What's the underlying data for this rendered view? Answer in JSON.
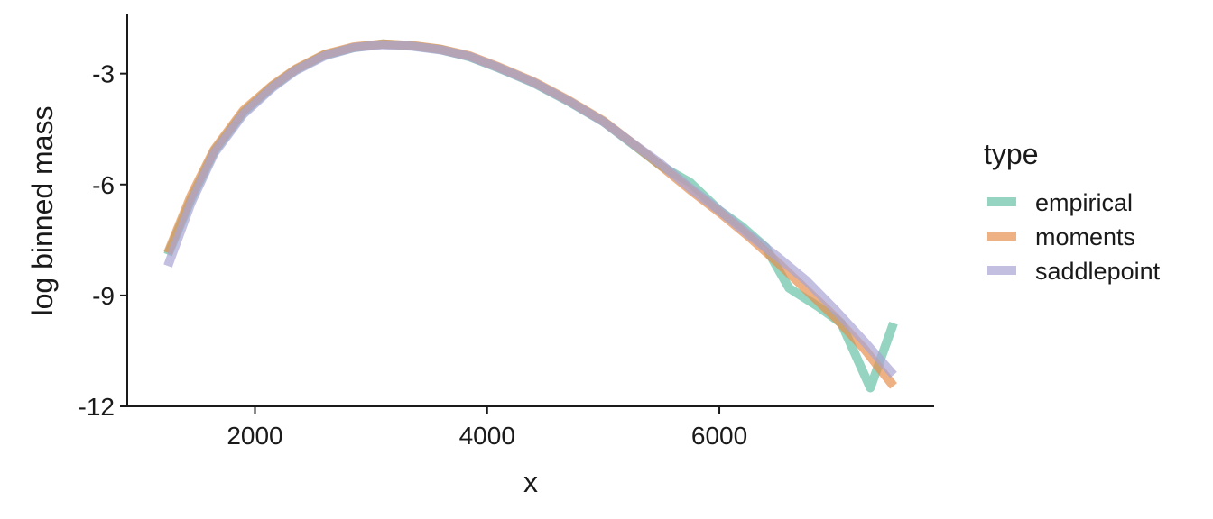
{
  "chart_data": {
    "type": "line",
    "title": "",
    "xlabel": "x",
    "ylabel": "log binned mass",
    "xlim": [
      900,
      7850
    ],
    "ylim": [
      -12,
      -1.4
    ],
    "x_ticks": [
      2000,
      4000,
      6000
    ],
    "x_tick_labels": [
      "2000",
      "4000",
      "6000"
    ],
    "y_ticks": [
      -3,
      -6,
      -9,
      -12
    ],
    "y_tick_labels": [
      "-3",
      "-6",
      "-9",
      "-12"
    ],
    "grid": false,
    "legend": {
      "title": "type",
      "placement": "right"
    },
    "series": [
      {
        "name": "empirical",
        "color": "#66c2a5",
        "points": [
          [
            1250,
            -7.9
          ],
          [
            1450,
            -6.4
          ],
          [
            1650,
            -5.1
          ],
          [
            1900,
            -4.05
          ],
          [
            2150,
            -3.35
          ],
          [
            2350,
            -2.9
          ],
          [
            2600,
            -2.5
          ],
          [
            2850,
            -2.3
          ],
          [
            3100,
            -2.2
          ],
          [
            3350,
            -2.25
          ],
          [
            3600,
            -2.35
          ],
          [
            3850,
            -2.55
          ],
          [
            4100,
            -2.85
          ],
          [
            4400,
            -3.25
          ],
          [
            4700,
            -3.75
          ],
          [
            5000,
            -4.3
          ],
          [
            5250,
            -4.9
          ],
          [
            5500,
            -5.5
          ],
          [
            5750,
            -5.95
          ],
          [
            6000,
            -6.7
          ],
          [
            6200,
            -7.15
          ],
          [
            6400,
            -7.7
          ],
          [
            6600,
            -8.8
          ],
          [
            6850,
            -9.3
          ],
          [
            7050,
            -9.75
          ],
          [
            7300,
            -11.5
          ],
          [
            7500,
            -9.75
          ]
        ]
      },
      {
        "name": "moments",
        "color": "#e6904e",
        "points": [
          [
            1250,
            -7.85
          ],
          [
            1450,
            -6.3
          ],
          [
            1650,
            -5.05
          ],
          [
            1900,
            -4.0
          ],
          [
            2150,
            -3.32
          ],
          [
            2350,
            -2.88
          ],
          [
            2600,
            -2.48
          ],
          [
            2850,
            -2.28
          ],
          [
            3100,
            -2.2
          ],
          [
            3350,
            -2.24
          ],
          [
            3600,
            -2.34
          ],
          [
            3850,
            -2.52
          ],
          [
            4100,
            -2.82
          ],
          [
            4400,
            -3.22
          ],
          [
            4700,
            -3.72
          ],
          [
            5000,
            -4.28
          ],
          [
            5250,
            -4.88
          ],
          [
            5500,
            -5.5
          ],
          [
            5750,
            -6.15
          ],
          [
            6000,
            -6.75
          ],
          [
            6250,
            -7.4
          ],
          [
            6500,
            -8.1
          ],
          [
            6750,
            -8.85
          ],
          [
            7000,
            -9.6
          ],
          [
            7250,
            -10.45
          ],
          [
            7500,
            -11.45
          ]
        ]
      },
      {
        "name": "saddlepoint",
        "color": "#a9a4d3",
        "points": [
          [
            1250,
            -8.2
          ],
          [
            1450,
            -6.5
          ],
          [
            1650,
            -5.15
          ],
          [
            1900,
            -4.1
          ],
          [
            2150,
            -3.38
          ],
          [
            2350,
            -2.92
          ],
          [
            2600,
            -2.52
          ],
          [
            2850,
            -2.3
          ],
          [
            3100,
            -2.22
          ],
          [
            3350,
            -2.26
          ],
          [
            3600,
            -2.36
          ],
          [
            3850,
            -2.54
          ],
          [
            4100,
            -2.84
          ],
          [
            4400,
            -3.24
          ],
          [
            4700,
            -3.74
          ],
          [
            5000,
            -4.3
          ],
          [
            5250,
            -4.88
          ],
          [
            5500,
            -5.45
          ],
          [
            5750,
            -6.1
          ],
          [
            6000,
            -6.7
          ],
          [
            6250,
            -7.35
          ],
          [
            6500,
            -7.95
          ],
          [
            6750,
            -8.6
          ],
          [
            7000,
            -9.4
          ],
          [
            7250,
            -10.25
          ],
          [
            7500,
            -11.15
          ]
        ]
      }
    ]
  }
}
